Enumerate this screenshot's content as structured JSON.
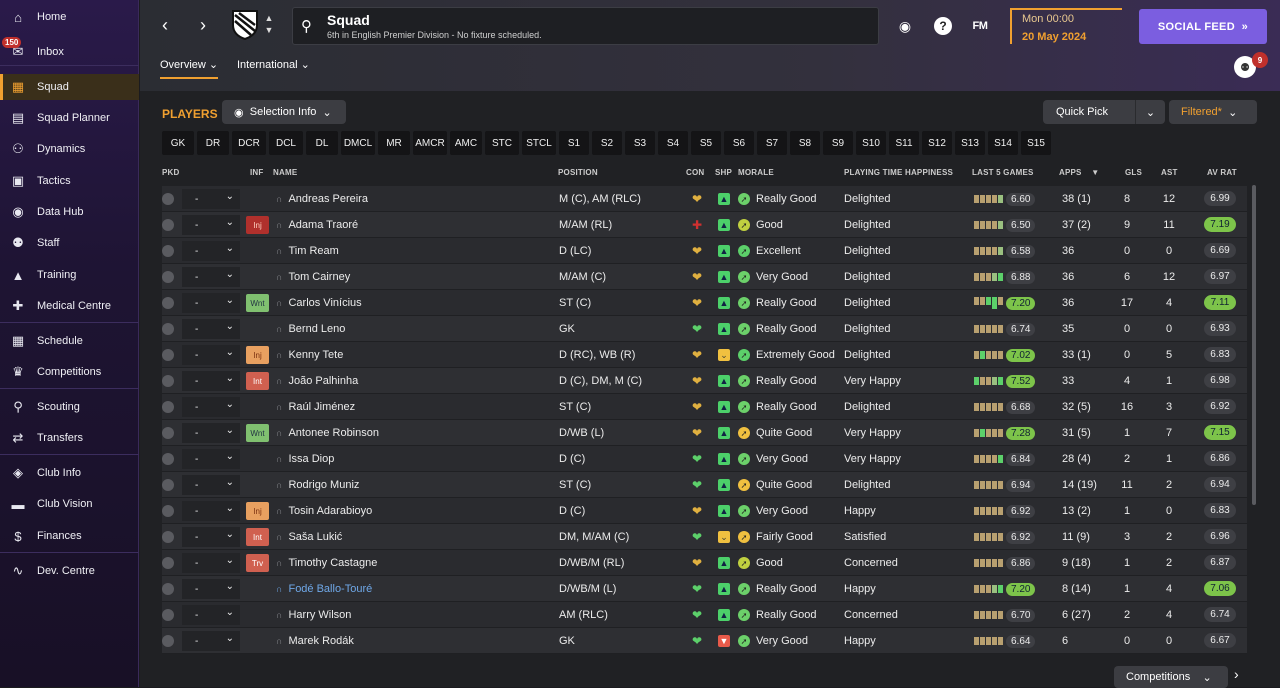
{
  "sidebar": {
    "inbox_badge": "150",
    "items": [
      {
        "label": "Home",
        "icon": "home-icon",
        "glyph": "⌂"
      },
      {
        "label": "Inbox",
        "icon": "inbox-icon",
        "glyph": "✉"
      },
      {
        "label": "Squad",
        "icon": "squad-icon",
        "glyph": "▦"
      },
      {
        "label": "Squad Planner",
        "icon": "planner-icon",
        "glyph": "▤"
      },
      {
        "label": "Dynamics",
        "icon": "dynamics-icon",
        "glyph": "⚇"
      },
      {
        "label": "Tactics",
        "icon": "tactics-icon",
        "glyph": "▣"
      },
      {
        "label": "Data Hub",
        "icon": "data-hub-icon",
        "glyph": "◉"
      },
      {
        "label": "Staff",
        "icon": "staff-icon",
        "glyph": "⚉"
      },
      {
        "label": "Training",
        "icon": "training-icon",
        "glyph": "▲"
      },
      {
        "label": "Medical Centre",
        "icon": "medical-icon",
        "glyph": "✚"
      },
      {
        "label": "Schedule",
        "icon": "schedule-icon",
        "glyph": "▦"
      },
      {
        "label": "Competitions",
        "icon": "trophy-icon",
        "glyph": "♛"
      },
      {
        "label": "Scouting",
        "icon": "scouting-icon",
        "glyph": "⚲"
      },
      {
        "label": "Transfers",
        "icon": "transfers-icon",
        "glyph": "⇄"
      },
      {
        "label": "Club Info",
        "icon": "club-info-icon",
        "glyph": "◈"
      },
      {
        "label": "Club Vision",
        "icon": "club-vision-icon",
        "glyph": "▬"
      },
      {
        "label": "Finances",
        "icon": "finances-icon",
        "glyph": "$"
      },
      {
        "label": "Dev. Centre",
        "icon": "dev-centre-icon",
        "glyph": "∿"
      }
    ]
  },
  "header": {
    "title": "Squad",
    "subtitle": "6th in English Premier Division - No fixture scheduled.",
    "date_time": "Mon 00:00",
    "date": "20 May 2024",
    "social_feed": "SOCIAL FEED",
    "fm_label": "FM",
    "tabs": [
      "Overview",
      "International"
    ],
    "avatar_badge": "9"
  },
  "toolbar": {
    "players_label": "PLAYERS",
    "selection_info": "Selection Info",
    "quick_pick": "Quick Pick",
    "filtered": "Filtered*",
    "positions": [
      "GK",
      "DR",
      "DCR",
      "DCL",
      "DL",
      "DMCL",
      "MR",
      "AMCR",
      "AMC",
      "STC",
      "STCL",
      "S1",
      "S2",
      "S3",
      "S4",
      "S5",
      "S6",
      "S7",
      "S8",
      "S9",
      "S10",
      "S11",
      "S12",
      "S13",
      "S14",
      "S15"
    ]
  },
  "columns": {
    "pkd": "PKD",
    "inf": "INF",
    "name": "NAME",
    "position": "POSITION",
    "con": "CON",
    "shp": "SHP",
    "morale": "MORALE",
    "pth": "PLAYING TIME HAPPINESS",
    "last5": "LAST 5 GAMES",
    "apps": "APPS",
    "gls": "GLS",
    "ast": "AST",
    "avrat": "AV RAT"
  },
  "players": [
    {
      "name": "Andreas Pereira",
      "position": "M (C), AM (RLC)",
      "inf": "",
      "con": "gold",
      "shp": "good",
      "morale": "Really Good",
      "pth": "Delighted",
      "last5": "6.60",
      "l5good": false,
      "apps": "38 (1)",
      "gls": "8",
      "ast": "12",
      "avrat": "6.99",
      "avgood": false
    },
    {
      "name": "Adama Traoré",
      "position": "M/AM (RL)",
      "inf": "Inj",
      "infred": true,
      "con": "red",
      "shp": "good",
      "morale": "Good",
      "pth": "Delighted",
      "last5": "6.50",
      "l5good": false,
      "apps": "37 (2)",
      "gls": "9",
      "ast": "11",
      "avrat": "7.19",
      "avgood": true
    },
    {
      "name": "Tim Ream",
      "position": "D (LC)",
      "inf": "",
      "con": "gold",
      "shp": "good",
      "morale": "Excellent",
      "pth": "Delighted",
      "last5": "6.58",
      "l5good": false,
      "apps": "36",
      "gls": "0",
      "ast": "0",
      "avrat": "6.69",
      "avgood": false
    },
    {
      "name": "Tom Cairney",
      "position": "M/AM (C)",
      "inf": "",
      "con": "gold",
      "shp": "good",
      "morale": "Very Good",
      "pth": "Delighted",
      "last5": "6.88",
      "l5good": false,
      "apps": "36",
      "gls": "6",
      "ast": "12",
      "avrat": "6.97",
      "avgood": false
    },
    {
      "name": "Carlos Vinícius",
      "position": "ST (C)",
      "inf": "Wnt",
      "con": "gold",
      "shp": "good",
      "morale": "Really Good",
      "pth": "Delighted",
      "last5": "7.20",
      "l5good": true,
      "apps": "36",
      "gls": "17",
      "ast": "4",
      "avrat": "7.11",
      "avgood": true
    },
    {
      "name": "Bernd Leno",
      "position": "GK",
      "inf": "",
      "con": "green",
      "shp": "good",
      "morale": "Really Good",
      "pth": "Delighted",
      "last5": "6.74",
      "l5good": false,
      "apps": "35",
      "gls": "0",
      "ast": "0",
      "avrat": "6.93",
      "avgood": false
    },
    {
      "name": "Kenny Tete",
      "position": "D (RC), WB (R)",
      "inf": "Inj",
      "con": "gold",
      "shp": "mid",
      "morale": "Extremely Good",
      "pth": "Delighted",
      "last5": "7.02",
      "l5good": true,
      "apps": "33 (1)",
      "gls": "0",
      "ast": "5",
      "avrat": "6.83",
      "avgood": false
    },
    {
      "name": "João Palhinha",
      "position": "D (C), DM, M (C)",
      "inf": "Int",
      "con": "gold",
      "shp": "good",
      "morale": "Really Good",
      "pth": "Very Happy",
      "last5": "7.52",
      "l5good": true,
      "apps": "33",
      "gls": "4",
      "ast": "1",
      "avrat": "6.98",
      "avgood": false
    },
    {
      "name": "Raúl Jiménez",
      "position": "ST (C)",
      "inf": "",
      "con": "gold",
      "shp": "good",
      "morale": "Really Good",
      "pth": "Delighted",
      "last5": "6.68",
      "l5good": false,
      "apps": "32 (5)",
      "gls": "16",
      "ast": "3",
      "avrat": "6.92",
      "avgood": false
    },
    {
      "name": "Antonee Robinson",
      "position": "D/WB (L)",
      "inf": "Wnt",
      "con": "gold",
      "shp": "good",
      "morale": "Quite Good",
      "pth": "Very Happy",
      "last5": "7.28",
      "l5good": true,
      "apps": "31 (5)",
      "gls": "1",
      "ast": "7",
      "avrat": "7.15",
      "avgood": true
    },
    {
      "name": "Issa Diop",
      "position": "D (C)",
      "inf": "",
      "con": "green",
      "shp": "good",
      "morale": "Very Good",
      "pth": "Very Happy",
      "last5": "6.84",
      "l5good": false,
      "apps": "28 (4)",
      "gls": "2",
      "ast": "1",
      "avrat": "6.86",
      "avgood": false
    },
    {
      "name": "Rodrigo Muniz",
      "position": "ST (C)",
      "inf": "",
      "con": "green",
      "shp": "good",
      "morale": "Quite Good",
      "pth": "Delighted",
      "last5": "6.94",
      "l5good": false,
      "apps": "14 (19)",
      "gls": "11",
      "ast": "2",
      "avrat": "6.94",
      "avgood": false
    },
    {
      "name": "Tosin Adarabioyo",
      "position": "D (C)",
      "inf": "Inj",
      "con": "gold",
      "shp": "good",
      "morale": "Very Good",
      "pth": "Happy",
      "last5": "6.92",
      "l5good": false,
      "apps": "13 (2)",
      "gls": "1",
      "ast": "0",
      "avrat": "6.83",
      "avgood": false
    },
    {
      "name": "Saša Lukić",
      "position": "DM, M/AM (C)",
      "inf": "Int",
      "con": "green",
      "shp": "mid",
      "morale": "Fairly Good",
      "pth": "Satisfied",
      "last5": "6.92",
      "l5good": false,
      "apps": "11 (9)",
      "gls": "3",
      "ast": "2",
      "avrat": "6.96",
      "avgood": false
    },
    {
      "name": "Timothy Castagne",
      "position": "D/WB/M (RL)",
      "inf": "Trv",
      "con": "gold",
      "shp": "good",
      "morale": "Good",
      "pth": "Concerned",
      "last5": "6.86",
      "l5good": false,
      "apps": "9 (18)",
      "gls": "1",
      "ast": "2",
      "avrat": "6.87",
      "avgood": false
    },
    {
      "name": "Fodé Ballo-Touré",
      "position": "D/WB/M (L)",
      "inf": "",
      "blue": true,
      "con": "green",
      "shp": "good",
      "morale": "Really Good",
      "pth": "Happy",
      "last5": "7.20",
      "l5good": true,
      "apps": "8 (14)",
      "gls": "1",
      "ast": "4",
      "avrat": "7.06",
      "avgood": true
    },
    {
      "name": "Harry Wilson",
      "position": "AM (RLC)",
      "inf": "",
      "con": "green",
      "shp": "good",
      "morale": "Really Good",
      "pth": "Concerned",
      "last5": "6.70",
      "l5good": false,
      "apps": "6 (27)",
      "gls": "2",
      "ast": "4",
      "avrat": "6.74",
      "avgood": false
    },
    {
      "name": "Marek Rodák",
      "position": "GK",
      "inf": "",
      "con": "green",
      "shp": "bad",
      "morale": "Very Good",
      "pth": "Happy",
      "last5": "6.64",
      "l5good": false,
      "apps": "6",
      "gls": "0",
      "ast": "0",
      "avrat": "6.67",
      "avgood": false
    }
  ],
  "footer": {
    "competitions": "Competitions"
  },
  "colors": {
    "accent": "#f0a030",
    "social": "#7b5ee0",
    "good_rating": "#7dc44a"
  }
}
